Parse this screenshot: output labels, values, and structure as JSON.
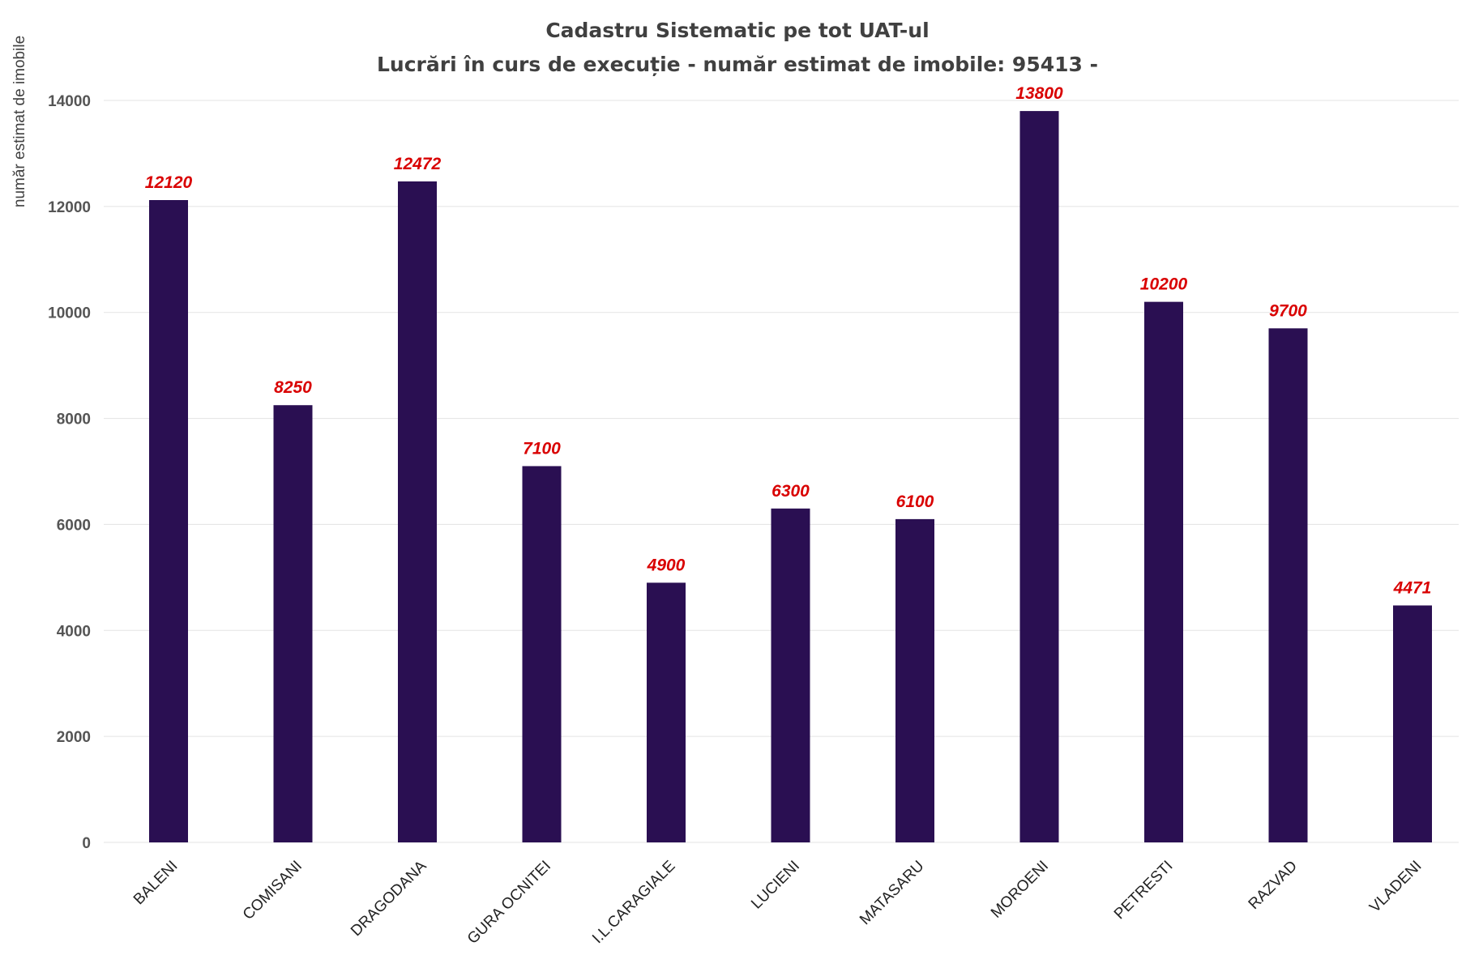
{
  "chart_data": {
    "type": "bar",
    "title": "Cadastru Sistematic pe tot UAT-ul",
    "subtitle": "Lucrări în curs de execuție - număr estimat de imobile: 95413 -",
    "xlabel": "",
    "ylabel": "număr estimat de imobile",
    "ylim": [
      0,
      14000
    ],
    "yticks": [
      0,
      2000,
      4000,
      6000,
      8000,
      10000,
      12000,
      14000
    ],
    "grid": true,
    "categories": [
      "BALENI",
      "COMISANI",
      "DRAGODANA",
      "GURA OCNITEI",
      "I.L.CARAGIALE",
      "LUCIENI",
      "MATASARU",
      "MOROENI",
      "PETRESTI",
      "RAZVAD",
      "VLADENI"
    ],
    "values": [
      12120,
      8250,
      12472,
      7100,
      4900,
      6300,
      6100,
      13800,
      10200,
      9700,
      4471
    ],
    "bar_color": "#2a0f52",
    "label_color": "#d90000"
  }
}
